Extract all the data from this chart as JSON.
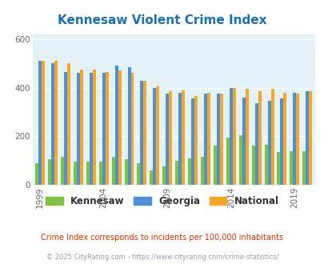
{
  "title": "Kennesaw Violent Crime Index",
  "title_color": "#1a6faf",
  "years": [
    1999,
    2000,
    2001,
    2002,
    2003,
    2004,
    2005,
    2006,
    2007,
    2008,
    2009,
    2010,
    2011,
    2012,
    2013,
    2014,
    2015,
    2016,
    2017,
    2018,
    2019,
    2020
  ],
  "kennesaw": [
    90,
    105,
    115,
    95,
    95,
    95,
    115,
    105,
    90,
    60,
    75,
    100,
    110,
    115,
    160,
    195,
    205,
    160,
    165,
    135,
    140,
    140
  ],
  "georgia": [
    510,
    500,
    465,
    460,
    460,
    460,
    490,
    485,
    430,
    400,
    375,
    380,
    355,
    375,
    375,
    400,
    360,
    335,
    345,
    355,
    380,
    385
  ],
  "national": [
    510,
    510,
    500,
    475,
    475,
    465,
    470,
    460,
    430,
    405,
    385,
    390,
    365,
    380,
    375,
    400,
    395,
    385,
    395,
    380,
    375,
    385
  ],
  "bar_width": 0.25,
  "ylim": [
    0,
    620
  ],
  "yticks": [
    0,
    200,
    400,
    600
  ],
  "xlabel_ticks": [
    1999,
    2004,
    2009,
    2014,
    2019
  ],
  "color_kennesaw": "#7dc243",
  "color_georgia": "#4f8fd4",
  "color_national": "#f5a623",
  "bg_color": "#e4f2f7",
  "note": "Crime Index corresponds to incidents per 100,000 inhabitants",
  "note_color": "#cc3300",
  "copyright": "© 2025 CityRating.com - https://www.cityrating.com/crime-statistics/",
  "copyright_color": "#9999aa",
  "legend_labels": [
    "Kennesaw",
    "Georgia",
    "National"
  ],
  "grid_color": "#ffffff",
  "axis_label_color": "#666666"
}
